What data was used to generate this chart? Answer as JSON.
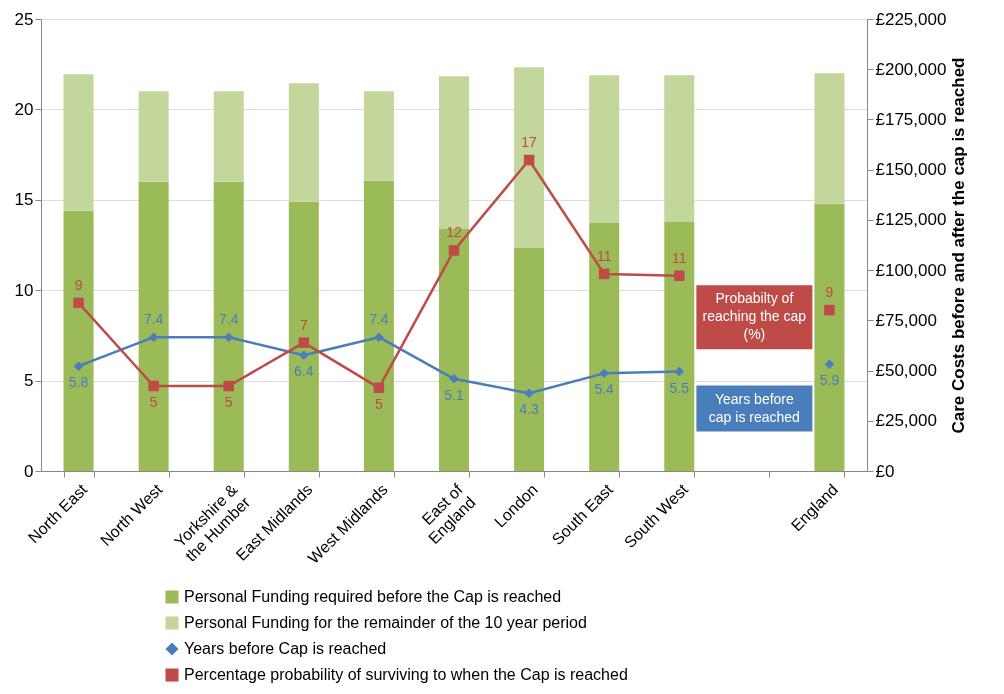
{
  "chart_data": {
    "type": "bar",
    "stacked": true,
    "categories": [
      "North East",
      "North West",
      "Yorkshire &\nthe Humber",
      "East Midlands",
      "West Midlands",
      "East of\nEngland",
      "London",
      "South East",
      "South West",
      null,
      "England"
    ],
    "series": [
      {
        "name": "Personal Funding required before the Cap is reached",
        "axis": "y2",
        "color": "#9bbb59",
        "values": [
          129500,
          144000,
          144000,
          134000,
          144500,
          120500,
          111000,
          123500,
          124000,
          null,
          133000
        ]
      },
      {
        "name": "Personal Funding for the remainder of the 10 year period",
        "axis": "y2",
        "color": "#c3d69b",
        "values": [
          68000,
          45000,
          45000,
          59000,
          44500,
          76000,
          90000,
          73500,
          73000,
          null,
          65000
        ]
      },
      {
        "name": "Years before Cap is reached",
        "type": "line",
        "axis": "y",
        "color": "#4a7ebb",
        "marker": "diamond",
        "data_labels": true,
        "values": [
          5.8,
          7.4,
          7.4,
          6.4,
          7.4,
          5.1,
          4.3,
          5.4,
          5.5,
          null,
          5.9
        ]
      },
      {
        "name": "Percentage probability of surviving to when the Cap is reached",
        "type": "line",
        "axis": "y",
        "color": "#be4b48",
        "marker": "square",
        "values": [
          9.3,
          4.7,
          4.7,
          7.1,
          4.6,
          12.2,
          17.2,
          10.9,
          10.8,
          null,
          8.9
        ],
        "value_labels": [
          "9",
          "5",
          "5",
          "7",
          "5",
          "12",
          "17",
          "11",
          "11",
          null,
          "9"
        ]
      }
    ],
    "y2label": "Care Costs before and after the cap is reached",
    "ylim": [
      0,
      25
    ],
    "yticks": [
      0,
      5,
      10,
      15,
      20,
      25
    ],
    "y2lim": [
      0,
      225000
    ],
    "y2ticks": [
      {
        "value": 0,
        "label": "£0"
      },
      {
        "value": 25000,
        "label": "£25,000"
      },
      {
        "value": 50000,
        "label": "£50,000"
      },
      {
        "value": 75000,
        "label": "£75,000"
      },
      {
        "value": 100000,
        "label": "£100,000"
      },
      {
        "value": 125000,
        "label": "£125,000"
      },
      {
        "value": 150000,
        "label": "£150,000"
      },
      {
        "value": 175000,
        "label": "£175,000"
      },
      {
        "value": 200000,
        "label": "£200,000"
      },
      {
        "value": 225000,
        "label": "£225,000"
      }
    ],
    "grid": "y",
    "legend": "bottom",
    "annotations": [
      "Probabilty of\nreaching the cap\n(%)",
      "Years before\ncap is reached"
    ]
  }
}
